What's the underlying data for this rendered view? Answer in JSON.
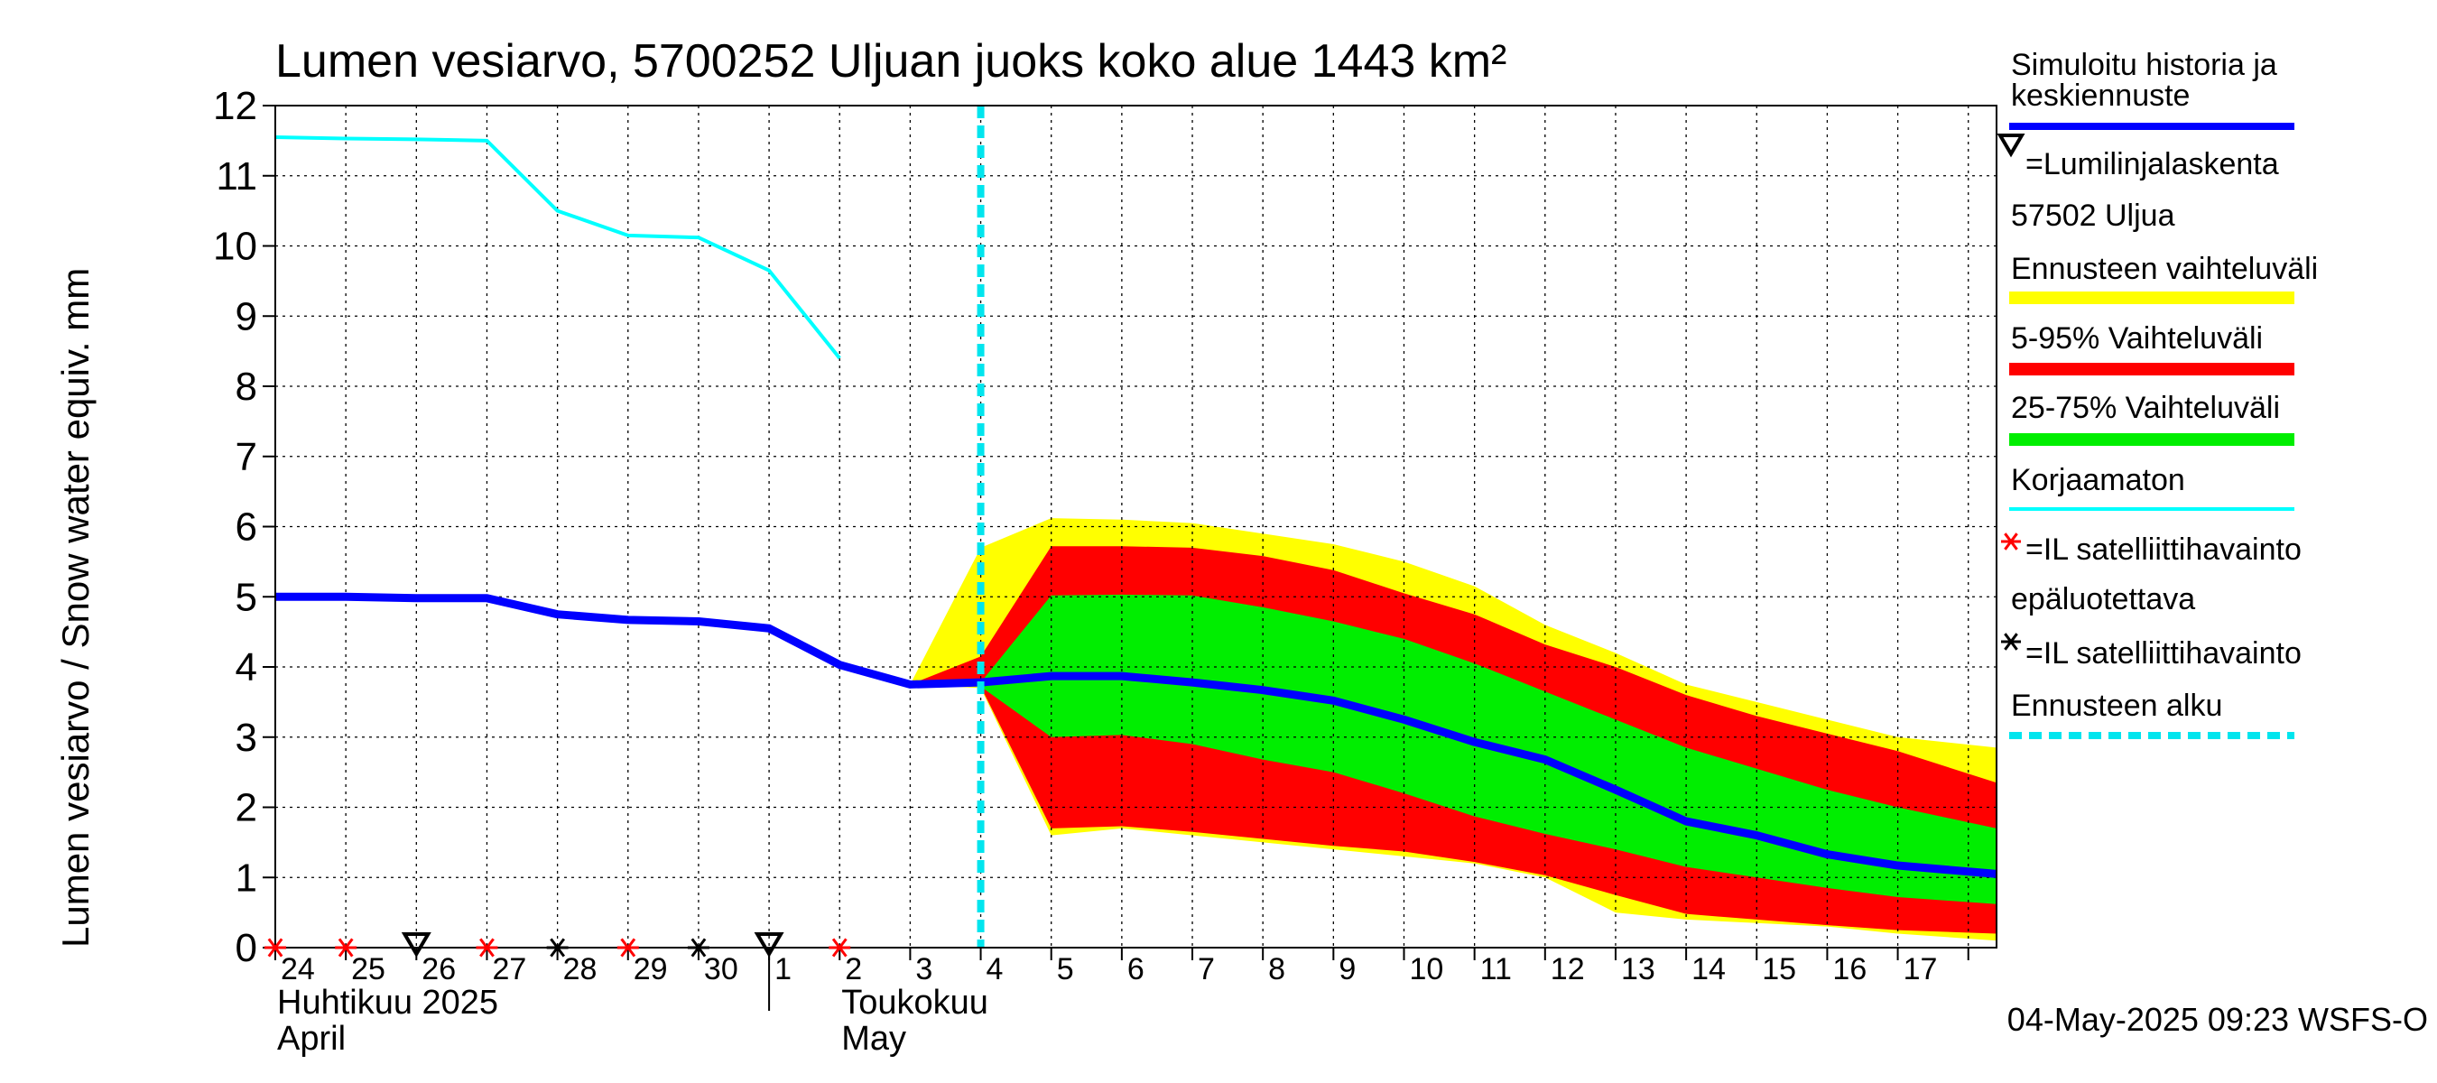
{
  "chart_data": {
    "type": "area",
    "title": "Lumen vesiarvo, 5700252 Uljuan juoks koko alue 1443 km²",
    "ylabel": "Lumen vesiarvo / Snow water equiv.    mm",
    "ylim": [
      0,
      12
    ],
    "yticks": [
      "0",
      "1",
      "2",
      "3",
      "4",
      "5",
      "6",
      "7",
      "8",
      "9",
      "10",
      "11",
      "12"
    ],
    "xlim": [
      0,
      24.4
    ],
    "grid": true,
    "x_tick_labels": [
      {
        "x": 0,
        "label": "24"
      },
      {
        "x": 1,
        "label": "25"
      },
      {
        "x": 2,
        "label": "26"
      },
      {
        "x": 3,
        "label": "27"
      },
      {
        "x": 4,
        "label": "28"
      },
      {
        "x": 5,
        "label": "29"
      },
      {
        "x": 6,
        "label": "30"
      },
      {
        "x": 7,
        "label": "1"
      },
      {
        "x": 8,
        "label": "2"
      },
      {
        "x": 9,
        "label": "3"
      },
      {
        "x": 10,
        "label": "4"
      },
      {
        "x": 11,
        "label": "5"
      },
      {
        "x": 12,
        "label": "6"
      },
      {
        "x": 13,
        "label": "7"
      },
      {
        "x": 14,
        "label": "8"
      },
      {
        "x": 15,
        "label": "9"
      },
      {
        "x": 16,
        "label": "10"
      },
      {
        "x": 17,
        "label": "11"
      },
      {
        "x": 18,
        "label": "12"
      },
      {
        "x": 19,
        "label": "13"
      },
      {
        "x": 20,
        "label": "14"
      },
      {
        "x": 21,
        "label": "15"
      },
      {
        "x": 22,
        "label": "16"
      },
      {
        "x": 23,
        "label": "17"
      }
    ],
    "month_labels": [
      {
        "x": 0,
        "line1": "Huhtikuu  2025",
        "line2": "April"
      },
      {
        "x": 8,
        "line1": "Toukokuu",
        "line2": "May"
      }
    ],
    "month_separator_x": 7,
    "forecast_start_x": 10,
    "series": [
      {
        "name": "Korjaamaton",
        "kind": "line",
        "color": "#00ffff",
        "points": [
          [
            0,
            11.55
          ],
          [
            1,
            11.53
          ],
          [
            2,
            11.52
          ],
          [
            3,
            11.5
          ],
          [
            4,
            10.5
          ],
          [
            5,
            10.15
          ],
          [
            6,
            10.12
          ],
          [
            7,
            9.65
          ],
          [
            8,
            8.4
          ]
        ]
      },
      {
        "name": "Simuloitu historia ja keskiennuste",
        "kind": "line",
        "color": "#0000ff",
        "points": [
          [
            0,
            5.0
          ],
          [
            1,
            5.0
          ],
          [
            2,
            4.98
          ],
          [
            3,
            4.98
          ],
          [
            4,
            4.75
          ],
          [
            5,
            4.67
          ],
          [
            6,
            4.65
          ],
          [
            7,
            4.55
          ],
          [
            8,
            4.03
          ],
          [
            9,
            3.75
          ],
          [
            10,
            3.78
          ],
          [
            11,
            3.87
          ],
          [
            12,
            3.87
          ],
          [
            13,
            3.78
          ],
          [
            14,
            3.67
          ],
          [
            15,
            3.52
          ],
          [
            16,
            3.25
          ],
          [
            17,
            2.93
          ],
          [
            18,
            2.68
          ],
          [
            19,
            2.25
          ],
          [
            20,
            1.8
          ],
          [
            21,
            1.6
          ],
          [
            22,
            1.33
          ],
          [
            23,
            1.17
          ],
          [
            24.4,
            1.05
          ]
        ]
      },
      {
        "name": "Ennusteen vaihteluväli",
        "kind": "band",
        "color": "#ffff00",
        "upper": [
          [
            9,
            3.75
          ],
          [
            10,
            5.7
          ],
          [
            11,
            6.12
          ],
          [
            12,
            6.1
          ],
          [
            13,
            6.05
          ],
          [
            14,
            5.9
          ],
          [
            15,
            5.75
          ],
          [
            16,
            5.5
          ],
          [
            17,
            5.15
          ],
          [
            18,
            4.6
          ],
          [
            19,
            4.2
          ],
          [
            20,
            3.75
          ],
          [
            21,
            3.5
          ],
          [
            22,
            3.25
          ],
          [
            23,
            3.0
          ],
          [
            24.4,
            2.85
          ]
        ],
        "lower": [
          [
            9,
            3.75
          ],
          [
            10,
            3.7
          ],
          [
            11,
            1.6
          ],
          [
            12,
            1.7
          ],
          [
            13,
            1.6
          ],
          [
            14,
            1.5
          ],
          [
            15,
            1.4
          ],
          [
            16,
            1.3
          ],
          [
            17,
            1.2
          ],
          [
            18,
            1.0
          ],
          [
            19,
            0.5
          ],
          [
            20,
            0.4
          ],
          [
            21,
            0.35
          ],
          [
            22,
            0.3
          ],
          [
            23,
            0.2
          ],
          [
            24.4,
            0.1
          ]
        ]
      },
      {
        "name": "5-95% Vaihteluväli",
        "kind": "band",
        "color": "#ff0000",
        "upper": [
          [
            9,
            3.75
          ],
          [
            10,
            4.15
          ],
          [
            11,
            5.72
          ],
          [
            12,
            5.72
          ],
          [
            13,
            5.7
          ],
          [
            14,
            5.58
          ],
          [
            15,
            5.38
          ],
          [
            16,
            5.05
          ],
          [
            17,
            4.75
          ],
          [
            18,
            4.32
          ],
          [
            19,
            4.0
          ],
          [
            20,
            3.6
          ],
          [
            21,
            3.3
          ],
          [
            22,
            3.05
          ],
          [
            23,
            2.8
          ],
          [
            24.4,
            2.35
          ]
        ],
        "lower": [
          [
            9,
            3.75
          ],
          [
            10,
            3.72
          ],
          [
            11,
            1.7
          ],
          [
            12,
            1.73
          ],
          [
            13,
            1.65
          ],
          [
            14,
            1.55
          ],
          [
            15,
            1.45
          ],
          [
            16,
            1.37
          ],
          [
            17,
            1.22
          ],
          [
            18,
            1.03
          ],
          [
            19,
            0.75
          ],
          [
            20,
            0.48
          ],
          [
            21,
            0.4
          ],
          [
            22,
            0.32
          ],
          [
            23,
            0.25
          ],
          [
            24.4,
            0.2
          ]
        ]
      },
      {
        "name": "25-75% Vaihteluväli",
        "kind": "band",
        "color": "#00ee00",
        "upper": [
          [
            10,
            3.78
          ],
          [
            11,
            5.02
          ],
          [
            12,
            5.03
          ],
          [
            13,
            5.02
          ],
          [
            14,
            4.85
          ],
          [
            15,
            4.65
          ],
          [
            16,
            4.4
          ],
          [
            17,
            4.05
          ],
          [
            18,
            3.65
          ],
          [
            19,
            3.25
          ],
          [
            20,
            2.85
          ],
          [
            21,
            2.55
          ],
          [
            22,
            2.25
          ],
          [
            23,
            2.0
          ],
          [
            24.4,
            1.7
          ]
        ],
        "lower": [
          [
            10,
            3.72
          ],
          [
            11,
            3.0
          ],
          [
            12,
            3.03
          ],
          [
            13,
            2.9
          ],
          [
            14,
            2.68
          ],
          [
            15,
            2.5
          ],
          [
            16,
            2.2
          ],
          [
            17,
            1.87
          ],
          [
            18,
            1.62
          ],
          [
            19,
            1.4
          ],
          [
            20,
            1.15
          ],
          [
            21,
            1.0
          ],
          [
            22,
            0.85
          ],
          [
            23,
            0.72
          ],
          [
            24.4,
            0.62
          ]
        ]
      }
    ],
    "markers": [
      {
        "name": "IL satelliittihavainto epäluotettava",
        "color": "#ff0000",
        "symbol": "asterisk",
        "x": [
          0,
          1,
          3,
          5,
          8
        ],
        "y": 0
      },
      {
        "name": "IL satelliittihavainto",
        "color": "#000000",
        "symbol": "asterisk",
        "x": [
          4,
          6
        ],
        "y": 0
      },
      {
        "name": "Lumilinjalaskenta",
        "color": "#000000",
        "symbol": "triangle-down",
        "x": [
          2,
          7
        ],
        "y": 0
      }
    ],
    "legend": {
      "position": "right",
      "items": [
        {
          "text": "Simuloitu historia ja",
          "text2": "keskiennuste",
          "swatch": "line",
          "color": "#0000ff"
        },
        {
          "text": "=Lumilinjalaskenta",
          "text2": "57502 Uljua",
          "swatch": "triangle",
          "color": "#000000"
        },
        {
          "text": "Ennusteen vaihteluväli",
          "swatch": "bar",
          "color": "#ffff00"
        },
        {
          "text": "5-95% Vaihteluväli",
          "swatch": "bar",
          "color": "#ff0000"
        },
        {
          "text": "25-75% Vaihteluväli",
          "swatch": "bar",
          "color": "#00ee00"
        },
        {
          "text": "Korjaamaton",
          "swatch": "thinline",
          "color": "#00ffff"
        },
        {
          "text": "=IL satelliittihavainto",
          "text2": "epäluotettava",
          "swatch": "asterisk",
          "color": "#ff0000"
        },
        {
          "text": "=IL satelliittihavainto",
          "swatch": "asterisk",
          "color": "#000000"
        },
        {
          "text": "Ennusteen alku",
          "swatch": "dashed",
          "color": "#00e5ee"
        }
      ]
    },
    "timestamp": "04-May-2025 09:23 WSFS-O"
  }
}
